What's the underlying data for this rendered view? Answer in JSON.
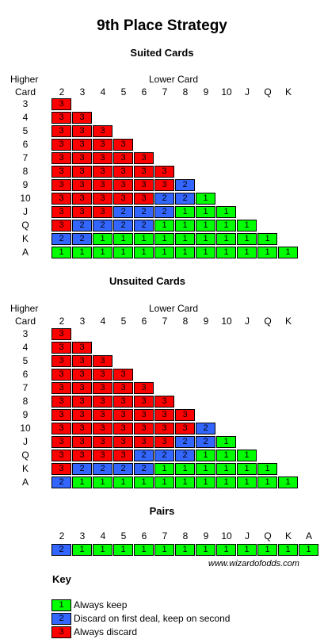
{
  "title": "9th Place Strategy",
  "suited": {
    "title": "Suited Cards",
    "higher_label_1": "Higher",
    "higher_label_2": "Card",
    "lower_label": "Lower Card",
    "columns": [
      "2",
      "3",
      "4",
      "5",
      "6",
      "7",
      "8",
      "9",
      "10",
      "J",
      "Q",
      "K"
    ],
    "rows": [
      {
        "label": "3",
        "cells": [
          "3"
        ]
      },
      {
        "label": "4",
        "cells": [
          "3",
          "3"
        ]
      },
      {
        "label": "5",
        "cells": [
          "3",
          "3",
          "3"
        ]
      },
      {
        "label": "6",
        "cells": [
          "3",
          "3",
          "3",
          "3"
        ]
      },
      {
        "label": "7",
        "cells": [
          "3",
          "3",
          "3",
          "3",
          "3"
        ]
      },
      {
        "label": "8",
        "cells": [
          "3",
          "3",
          "3",
          "3",
          "3",
          "3"
        ]
      },
      {
        "label": "9",
        "cells": [
          "3",
          "3",
          "3",
          "3",
          "3",
          "3",
          "2"
        ]
      },
      {
        "label": "10",
        "cells": [
          "3",
          "3",
          "3",
          "3",
          "3",
          "2",
          "2",
          "1"
        ]
      },
      {
        "label": "J",
        "cells": [
          "3",
          "3",
          "3",
          "2",
          "2",
          "2",
          "1",
          "1",
          "1"
        ]
      },
      {
        "label": "Q",
        "cells": [
          "3",
          "2",
          "2",
          "2",
          "2",
          "1",
          "1",
          "1",
          "1",
          "1"
        ]
      },
      {
        "label": "K",
        "cells": [
          "2",
          "2",
          "1",
          "1",
          "1",
          "1",
          "1",
          "1",
          "1",
          "1",
          "1"
        ]
      },
      {
        "label": "A",
        "cells": [
          "1",
          "1",
          "1",
          "1",
          "1",
          "1",
          "1",
          "1",
          "1",
          "1",
          "1",
          "1"
        ]
      }
    ]
  },
  "unsuited": {
    "title": "Unsuited Cards",
    "higher_label_1": "Higher",
    "higher_label_2": "Card",
    "lower_label": "Lower Card",
    "columns": [
      "2",
      "3",
      "4",
      "5",
      "6",
      "7",
      "8",
      "9",
      "10",
      "J",
      "Q",
      "K"
    ],
    "rows": [
      {
        "label": "3",
        "cells": [
          "3"
        ]
      },
      {
        "label": "4",
        "cells": [
          "3",
          "3"
        ]
      },
      {
        "label": "5",
        "cells": [
          "3",
          "3",
          "3"
        ]
      },
      {
        "label": "6",
        "cells": [
          "3",
          "3",
          "3",
          "3"
        ]
      },
      {
        "label": "7",
        "cells": [
          "3",
          "3",
          "3",
          "3",
          "3"
        ]
      },
      {
        "label": "8",
        "cells": [
          "3",
          "3",
          "3",
          "3",
          "3",
          "3"
        ]
      },
      {
        "label": "9",
        "cells": [
          "3",
          "3",
          "3",
          "3",
          "3",
          "3",
          "3"
        ]
      },
      {
        "label": "10",
        "cells": [
          "3",
          "3",
          "3",
          "3",
          "3",
          "3",
          "3",
          "2"
        ]
      },
      {
        "label": "J",
        "cells": [
          "3",
          "3",
          "3",
          "3",
          "3",
          "3",
          "2",
          "2",
          "1"
        ]
      },
      {
        "label": "Q",
        "cells": [
          "3",
          "3",
          "3",
          "3",
          "2",
          "2",
          "2",
          "1",
          "1",
          "1"
        ]
      },
      {
        "label": "K",
        "cells": [
          "3",
          "2",
          "2",
          "2",
          "2",
          "1",
          "1",
          "1",
          "1",
          "1",
          "1"
        ]
      },
      {
        "label": "A",
        "cells": [
          "2",
          "1",
          "1",
          "1",
          "1",
          "1",
          "1",
          "1",
          "1",
          "1",
          "1",
          "1"
        ]
      }
    ]
  },
  "pairs": {
    "title": "Pairs",
    "columns": [
      "2",
      "3",
      "4",
      "5",
      "6",
      "7",
      "8",
      "9",
      "10",
      "J",
      "Q",
      "K",
      "A"
    ],
    "cells": [
      "2",
      "1",
      "1",
      "1",
      "1",
      "1",
      "1",
      "1",
      "1",
      "1",
      "1",
      "1",
      "1"
    ]
  },
  "website": "www.wizardofodds.com",
  "key": {
    "title": "Key",
    "items": [
      {
        "value": "1",
        "label": "Always keep"
      },
      {
        "value": "2",
        "label": "Discard on first deal, keep on second"
      },
      {
        "value": "3",
        "label": "Always discard"
      }
    ]
  },
  "colors": {
    "1": "#00ff00",
    "2": "#3366ff",
    "3": "#ff0000"
  }
}
